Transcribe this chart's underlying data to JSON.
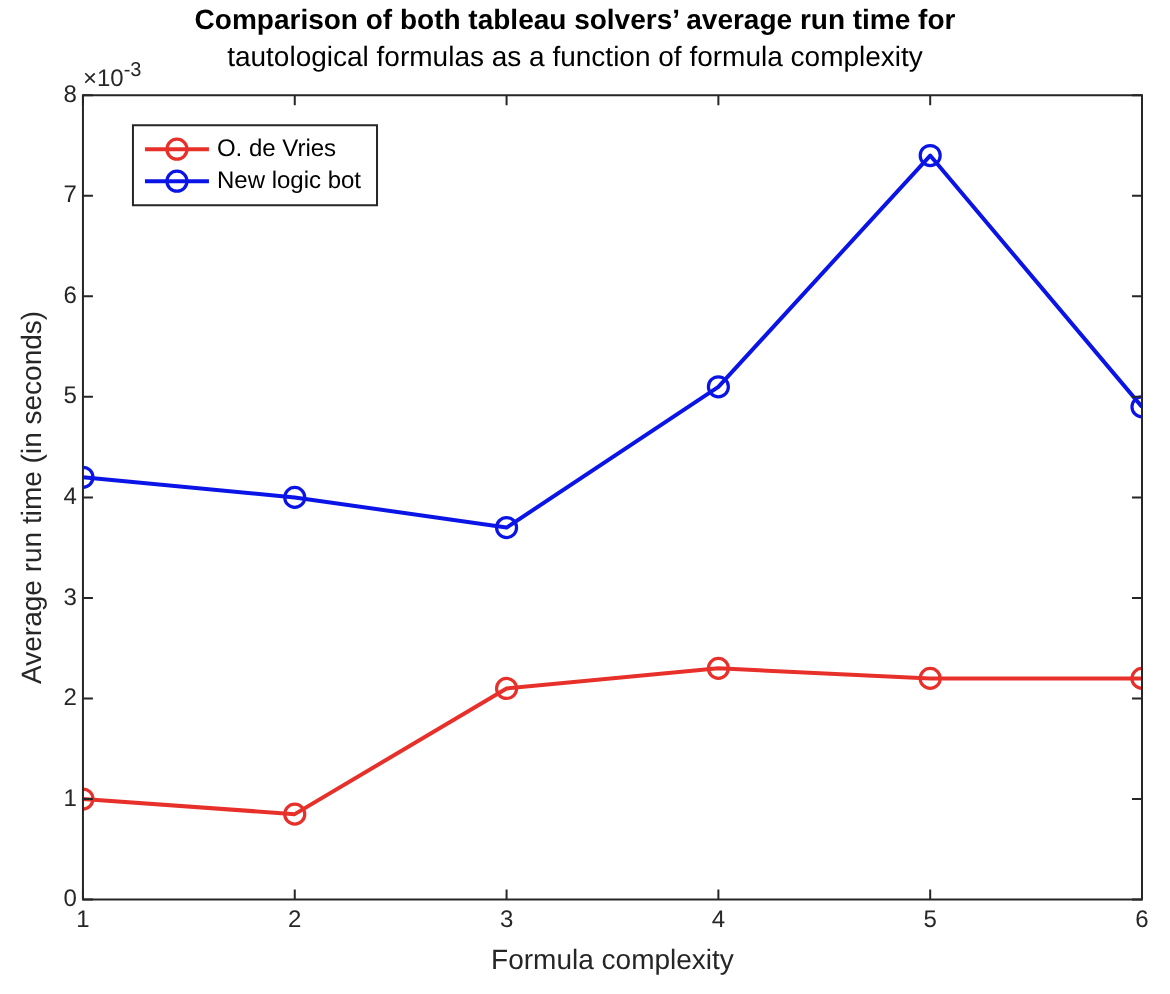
{
  "chart_data": {
    "type": "line",
    "title": "Comparison of both tableau solvers’ average run time for",
    "subtitle": "tautological formulas as a function of formula complexity",
    "xlabel": "Formula complexity",
    "ylabel": "Average run time (in seconds)",
    "x": [
      1,
      2,
      3,
      4,
      5,
      6
    ],
    "series": [
      {
        "name": "O. de Vries",
        "color": "#e8302a",
        "values": [
          1.0,
          0.85,
          2.1,
          2.3,
          2.2,
          2.2
        ]
      },
      {
        "name": "New logic bot",
        "color": "#0a14e6",
        "values": [
          4.2,
          4.0,
          3.7,
          5.1,
          7.4,
          4.9
        ]
      }
    ],
    "xlim": [
      1,
      6
    ],
    "xticks": [
      1,
      2,
      3,
      4,
      5,
      6
    ],
    "ylim": [
      0,
      8
    ],
    "yticks": [
      0,
      1,
      2,
      3,
      4,
      5,
      6,
      7,
      8
    ],
    "annotations": [
      "×10$^{-3}$"
    ],
    "grid": false,
    "legend": "top left",
    "marker": "circle",
    "line_style": "solid"
  }
}
